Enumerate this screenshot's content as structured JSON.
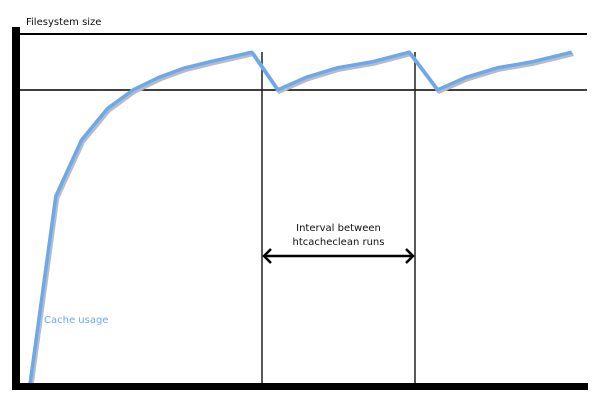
{
  "labels": {
    "y_axis": "Filesystem size",
    "interval_line1": "Interval between",
    "interval_line2": "htcacheclean runs",
    "series": "Cache usage"
  },
  "colors": {
    "curve": "#6aa9f0",
    "lines": "#000000"
  },
  "description_points": [
    [
      0,
      0
    ],
    [
      1,
      0.6
    ],
    [
      2,
      0.78
    ],
    [
      3,
      0.88
    ],
    [
      4,
      0.94
    ],
    [
      5,
      0.98
    ],
    [
      6,
      1.01
    ],
    [
      7,
      1.03
    ],
    [
      8.6,
      1.06
    ],
    [
      9.6,
      0.94
    ],
    [
      10.7,
      0.98
    ],
    [
      11.9,
      1.01
    ],
    [
      13.3,
      1.03
    ],
    [
      14.7,
      1.06
    ],
    [
      15.8,
      0.94
    ],
    [
      16.9,
      0.98
    ],
    [
      18.1,
      1.01
    ],
    [
      19.5,
      1.03
    ],
    [
      21,
      1.06
    ]
  ]
}
